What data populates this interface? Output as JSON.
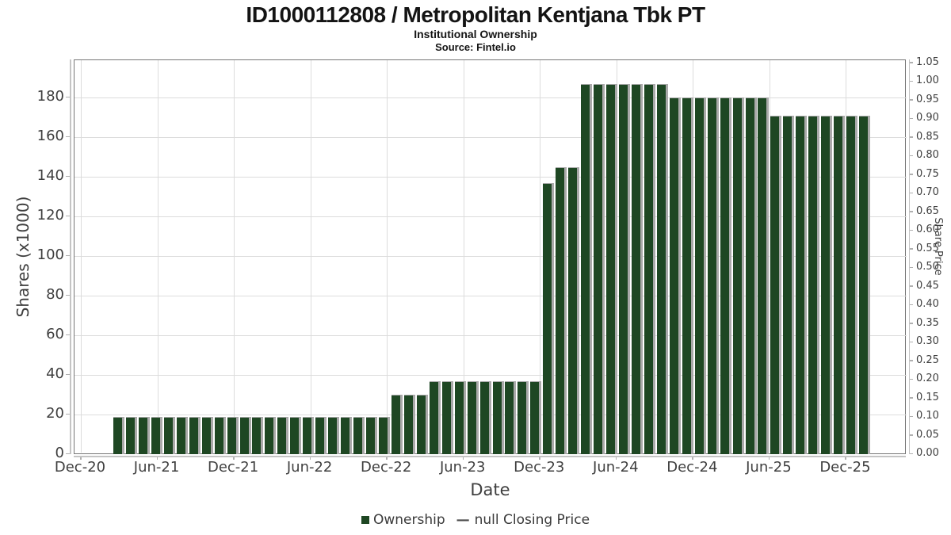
{
  "header": {
    "title": "ID1000112808 / Metropolitan Kentjana Tbk PT",
    "subtitle": "Institutional Ownership",
    "source": "Source: Fintel.io"
  },
  "axes": {
    "x_label": "Date",
    "y_left_label": "Shares (x1000)",
    "y_right_label": "Share Price"
  },
  "legend": {
    "ownership_label": "Ownership",
    "price_marker": "—",
    "price_label": "null Closing Price"
  },
  "colors": {
    "bar_fill": "#1e4723",
    "bar_shadow": "#a9a9a9",
    "grid": "#dcdcdc",
    "box_border": "#767676",
    "outer_spine": "#c4c4c4",
    "tick_mark": "#b0b0b0",
    "tick_text": "#3f3f3f",
    "title_text": "#141414"
  },
  "chart_data": {
    "type": "bar",
    "title": "ID1000112808 / Metropolitan Kentjana Tbk PT",
    "subtitle": "Institutional Ownership",
    "source": "Source: Fintel.io",
    "xlabel": "Date",
    "ylabel": "Shares (x1000)",
    "ylabel_right": "Share Price",
    "grid": true,
    "legend_position": "bottom",
    "x_tick_labels": [
      "Dec-20",
      "Jun-21",
      "Dec-21",
      "Jun-22",
      "Dec-22",
      "Jun-23",
      "Dec-23",
      "Jun-24",
      "Dec-24",
      "Jun-25",
      "Dec-25"
    ],
    "y_left_ticks": [
      0,
      20,
      40,
      60,
      80,
      100,
      120,
      140,
      160,
      180
    ],
    "y_left_range": [
      0,
      199
    ],
    "y_right_ticks": [
      0.0,
      0.05,
      0.1,
      0.15,
      0.2,
      0.25,
      0.3,
      0.35,
      0.4,
      0.45,
      0.5,
      0.55,
      0.6,
      0.65,
      0.7,
      0.75,
      0.8,
      0.85,
      0.9,
      0.95,
      1.0,
      1.05
    ],
    "y_right_range": [
      0,
      1.058
    ],
    "series": [
      {
        "name": "Ownership",
        "type": "bar",
        "unit": "shares x1000",
        "months": [
          "Mar-21",
          "Apr-21",
          "May-21",
          "Jun-21",
          "Jul-21",
          "Aug-21",
          "Sep-21",
          "Oct-21",
          "Nov-21",
          "Dec-21",
          "Jan-22",
          "Feb-22",
          "Mar-22",
          "Apr-22",
          "May-22",
          "Jun-22",
          "Jul-22",
          "Aug-22",
          "Sep-22",
          "Oct-22",
          "Nov-22",
          "Dec-22",
          "Jan-23",
          "Feb-23",
          "Mar-23",
          "Apr-23",
          "May-23",
          "Jun-23",
          "Jul-23",
          "Aug-23",
          "Sep-23",
          "Oct-23",
          "Nov-23",
          "Dec-23",
          "Jan-24",
          "Feb-24",
          "Mar-24",
          "Apr-24",
          "May-24",
          "Jun-24",
          "Jul-24",
          "Aug-24",
          "Sep-24",
          "Oct-24",
          "Nov-24",
          "Dec-24",
          "Jan-25",
          "Feb-25",
          "Mar-25",
          "Apr-25",
          "May-25",
          "Jun-25",
          "Jul-25",
          "Aug-25",
          "Sep-25",
          "Oct-25",
          "Nov-25",
          "Dec-25",
          "Jan-26",
          "Feb-26"
        ],
        "values": [
          19,
          19,
          19,
          19,
          19,
          19,
          19,
          19,
          19,
          19,
          19,
          19,
          19,
          19,
          19,
          19,
          19,
          19,
          19,
          19,
          19,
          19,
          30,
          30,
          30,
          37,
          37,
          37,
          37,
          37,
          37,
          37,
          37,
          37,
          137,
          145,
          145,
          187,
          187,
          187,
          187,
          187,
          187,
          187,
          180,
          180,
          180,
          180,
          180,
          180,
          180,
          180,
          171,
          171,
          171,
          171,
          171,
          171,
          171,
          171
        ]
      },
      {
        "name": "null Closing Price",
        "type": "line",
        "values": []
      }
    ]
  }
}
